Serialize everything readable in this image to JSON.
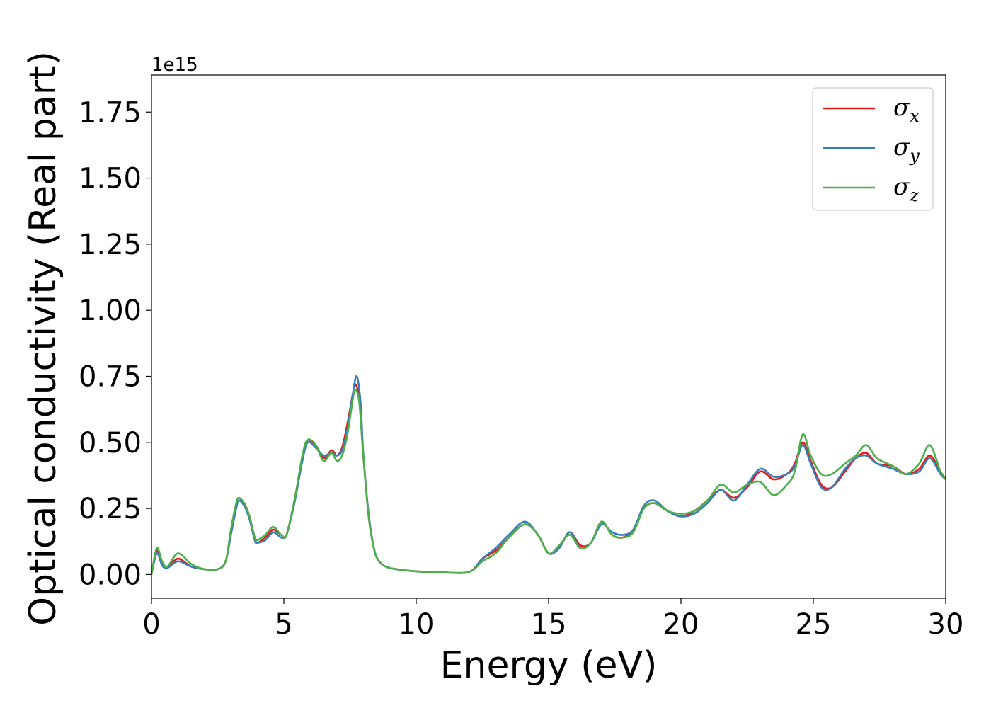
{
  "chart_data": {
    "type": "line",
    "title": "",
    "xlabel": "Energy (eV)",
    "ylabel": "Optical conductivity (Real part)",
    "y_offset_text": "1e15",
    "xlim": [
      0,
      30
    ],
    "ylim": [
      -0.09,
      1.89
    ],
    "x_ticks": [
      0,
      5,
      10,
      15,
      20,
      25,
      30
    ],
    "x_tick_labels": [
      "0",
      "5",
      "10",
      "15",
      "20",
      "25",
      "30"
    ],
    "y_ticks": [
      0.0,
      0.25,
      0.5,
      0.75,
      1.0,
      1.25,
      1.5,
      1.75
    ],
    "y_tick_labels": [
      "0.00",
      "0.25",
      "0.50",
      "0.75",
      "1.00",
      "1.25",
      "1.50",
      "1.75"
    ],
    "grid": false,
    "legend_position": "top-right",
    "series": [
      {
        "name": "σx",
        "label_symbol": "σ",
        "label_subscript": "x",
        "color": "#e41a1c",
        "points": [
          [
            0,
            0.0
          ],
          [
            0.2,
            0.09
          ],
          [
            0.4,
            0.04
          ],
          [
            0.6,
            0.025
          ],
          [
            1.0,
            0.06
          ],
          [
            1.5,
            0.03
          ],
          [
            2.0,
            0.02
          ],
          [
            2.5,
            0.02
          ],
          [
            2.8,
            0.05
          ],
          [
            3.0,
            0.16
          ],
          [
            3.2,
            0.26
          ],
          [
            3.3,
            0.28
          ],
          [
            3.5,
            0.27
          ],
          [
            3.7,
            0.22
          ],
          [
            3.9,
            0.14
          ],
          [
            4.0,
            0.12
          ],
          [
            4.3,
            0.14
          ],
          [
            4.6,
            0.17
          ],
          [
            4.9,
            0.15
          ],
          [
            5.1,
            0.15
          ],
          [
            5.4,
            0.28
          ],
          [
            5.7,
            0.44
          ],
          [
            5.9,
            0.5
          ],
          [
            6.2,
            0.49
          ],
          [
            6.5,
            0.44
          ],
          [
            6.8,
            0.47
          ],
          [
            7.0,
            0.45
          ],
          [
            7.2,
            0.48
          ],
          [
            7.4,
            0.57
          ],
          [
            7.6,
            0.68
          ],
          [
            7.7,
            0.72
          ],
          [
            7.85,
            0.66
          ],
          [
            8.0,
            0.45
          ],
          [
            8.2,
            0.23
          ],
          [
            8.4,
            0.1
          ],
          [
            8.6,
            0.05
          ],
          [
            9.0,
            0.025
          ],
          [
            10,
            0.012
          ],
          [
            11,
            0.008
          ],
          [
            12,
            0.01
          ],
          [
            12.5,
            0.06
          ],
          [
            13,
            0.09
          ],
          [
            13.5,
            0.14
          ],
          [
            14.1,
            0.19
          ],
          [
            14.6,
            0.15
          ],
          [
            15,
            0.08
          ],
          [
            15.4,
            0.1
          ],
          [
            15.8,
            0.16
          ],
          [
            16.2,
            0.11
          ],
          [
            16.6,
            0.12
          ],
          [
            17,
            0.2
          ],
          [
            17.4,
            0.15
          ],
          [
            17.8,
            0.14
          ],
          [
            18.2,
            0.17
          ],
          [
            18.6,
            0.25
          ],
          [
            19.0,
            0.27
          ],
          [
            19.5,
            0.24
          ],
          [
            20,
            0.22
          ],
          [
            20.5,
            0.24
          ],
          [
            21,
            0.28
          ],
          [
            21.5,
            0.32
          ],
          [
            22,
            0.29
          ],
          [
            22.5,
            0.33
          ],
          [
            23,
            0.39
          ],
          [
            23.5,
            0.36
          ],
          [
            24,
            0.38
          ],
          [
            24.3,
            0.42
          ],
          [
            24.6,
            0.5
          ],
          [
            24.9,
            0.43
          ],
          [
            25.3,
            0.34
          ],
          [
            25.7,
            0.33
          ],
          [
            26.2,
            0.39
          ],
          [
            26.6,
            0.44
          ],
          [
            27.0,
            0.46
          ],
          [
            27.4,
            0.42
          ],
          [
            28,
            0.41
          ],
          [
            28.5,
            0.38
          ],
          [
            29,
            0.4
          ],
          [
            29.4,
            0.45
          ],
          [
            29.8,
            0.39
          ],
          [
            30,
            0.36
          ]
        ]
      },
      {
        "name": "σy",
        "label_symbol": "σ",
        "label_subscript": "y",
        "color": "#377eb8",
        "points": [
          [
            0,
            0.0
          ],
          [
            0.2,
            0.08
          ],
          [
            0.4,
            0.035
          ],
          [
            0.6,
            0.025
          ],
          [
            1.0,
            0.05
          ],
          [
            1.5,
            0.03
          ],
          [
            2.0,
            0.02
          ],
          [
            2.5,
            0.02
          ],
          [
            2.8,
            0.05
          ],
          [
            3.0,
            0.15
          ],
          [
            3.2,
            0.25
          ],
          [
            3.3,
            0.28
          ],
          [
            3.5,
            0.26
          ],
          [
            3.7,
            0.21
          ],
          [
            3.9,
            0.13
          ],
          [
            4.0,
            0.12
          ],
          [
            4.3,
            0.13
          ],
          [
            4.6,
            0.16
          ],
          [
            4.9,
            0.14
          ],
          [
            5.1,
            0.15
          ],
          [
            5.4,
            0.27
          ],
          [
            5.7,
            0.43
          ],
          [
            5.9,
            0.5
          ],
          [
            6.2,
            0.48
          ],
          [
            6.5,
            0.45
          ],
          [
            6.8,
            0.46
          ],
          [
            7.0,
            0.45
          ],
          [
            7.2,
            0.47
          ],
          [
            7.4,
            0.55
          ],
          [
            7.6,
            0.68
          ],
          [
            7.75,
            0.75
          ],
          [
            7.9,
            0.65
          ],
          [
            8.0,
            0.46
          ],
          [
            8.2,
            0.23
          ],
          [
            8.4,
            0.1
          ],
          [
            8.6,
            0.05
          ],
          [
            9.0,
            0.025
          ],
          [
            10,
            0.012
          ],
          [
            11,
            0.008
          ],
          [
            12,
            0.01
          ],
          [
            12.5,
            0.06
          ],
          [
            13,
            0.1
          ],
          [
            13.5,
            0.15
          ],
          [
            14.1,
            0.2
          ],
          [
            14.6,
            0.15
          ],
          [
            15,
            0.08
          ],
          [
            15.4,
            0.1
          ],
          [
            15.8,
            0.16
          ],
          [
            16.2,
            0.1
          ],
          [
            16.6,
            0.12
          ],
          [
            17,
            0.19
          ],
          [
            17.4,
            0.16
          ],
          [
            17.8,
            0.15
          ],
          [
            18.2,
            0.17
          ],
          [
            18.6,
            0.26
          ],
          [
            19.0,
            0.28
          ],
          [
            19.5,
            0.24
          ],
          [
            20,
            0.22
          ],
          [
            20.5,
            0.23
          ],
          [
            21,
            0.27
          ],
          [
            21.5,
            0.32
          ],
          [
            22,
            0.28
          ],
          [
            22.5,
            0.34
          ],
          [
            23,
            0.4
          ],
          [
            23.5,
            0.37
          ],
          [
            24,
            0.38
          ],
          [
            24.3,
            0.41
          ],
          [
            24.6,
            0.49
          ],
          [
            24.9,
            0.42
          ],
          [
            25.3,
            0.33
          ],
          [
            25.7,
            0.33
          ],
          [
            26.2,
            0.4
          ],
          [
            26.6,
            0.44
          ],
          [
            27.0,
            0.45
          ],
          [
            27.4,
            0.42
          ],
          [
            28,
            0.4
          ],
          [
            28.5,
            0.38
          ],
          [
            29,
            0.39
          ],
          [
            29.4,
            0.44
          ],
          [
            29.8,
            0.38
          ],
          [
            30,
            0.36
          ]
        ]
      },
      {
        "name": "σz",
        "label_symbol": "σ",
        "label_subscript": "z",
        "color": "#4daf4a",
        "points": [
          [
            0,
            0.0
          ],
          [
            0.2,
            0.1
          ],
          [
            0.4,
            0.05
          ],
          [
            0.6,
            0.03
          ],
          [
            1.0,
            0.08
          ],
          [
            1.5,
            0.04
          ],
          [
            2.0,
            0.02
          ],
          [
            2.5,
            0.02
          ],
          [
            2.8,
            0.05
          ],
          [
            3.0,
            0.17
          ],
          [
            3.2,
            0.27
          ],
          [
            3.3,
            0.29
          ],
          [
            3.5,
            0.27
          ],
          [
            3.7,
            0.22
          ],
          [
            3.9,
            0.14
          ],
          [
            4.0,
            0.13
          ],
          [
            4.3,
            0.15
          ],
          [
            4.6,
            0.18
          ],
          [
            4.9,
            0.15
          ],
          [
            5.1,
            0.15
          ],
          [
            5.4,
            0.28
          ],
          [
            5.7,
            0.45
          ],
          [
            5.9,
            0.51
          ],
          [
            6.2,
            0.49
          ],
          [
            6.5,
            0.43
          ],
          [
            6.8,
            0.46
          ],
          [
            7.0,
            0.43
          ],
          [
            7.2,
            0.45
          ],
          [
            7.4,
            0.53
          ],
          [
            7.6,
            0.66
          ],
          [
            7.7,
            0.7
          ],
          [
            7.85,
            0.65
          ],
          [
            8.0,
            0.45
          ],
          [
            8.2,
            0.22
          ],
          [
            8.4,
            0.1
          ],
          [
            8.6,
            0.05
          ],
          [
            9.0,
            0.025
          ],
          [
            10,
            0.012
          ],
          [
            11,
            0.008
          ],
          [
            12,
            0.01
          ],
          [
            12.5,
            0.05
          ],
          [
            13,
            0.08
          ],
          [
            13.5,
            0.14
          ],
          [
            14.1,
            0.19
          ],
          [
            14.6,
            0.15
          ],
          [
            15,
            0.08
          ],
          [
            15.4,
            0.11
          ],
          [
            15.8,
            0.15
          ],
          [
            16.2,
            0.1
          ],
          [
            16.6,
            0.12
          ],
          [
            17,
            0.2
          ],
          [
            17.4,
            0.15
          ],
          [
            17.8,
            0.14
          ],
          [
            18.2,
            0.16
          ],
          [
            18.6,
            0.25
          ],
          [
            19.0,
            0.27
          ],
          [
            19.5,
            0.24
          ],
          [
            20,
            0.23
          ],
          [
            20.5,
            0.24
          ],
          [
            21,
            0.28
          ],
          [
            21.5,
            0.34
          ],
          [
            22,
            0.31
          ],
          [
            22.5,
            0.34
          ],
          [
            23,
            0.35
          ],
          [
            23.5,
            0.3
          ],
          [
            24,
            0.34
          ],
          [
            24.3,
            0.39
          ],
          [
            24.6,
            0.53
          ],
          [
            24.9,
            0.45
          ],
          [
            25.3,
            0.38
          ],
          [
            25.7,
            0.38
          ],
          [
            26.2,
            0.42
          ],
          [
            26.6,
            0.45
          ],
          [
            27.0,
            0.49
          ],
          [
            27.4,
            0.44
          ],
          [
            28,
            0.41
          ],
          [
            28.5,
            0.38
          ],
          [
            29,
            0.42
          ],
          [
            29.4,
            0.49
          ],
          [
            29.8,
            0.39
          ],
          [
            30,
            0.36
          ]
        ]
      }
    ]
  }
}
